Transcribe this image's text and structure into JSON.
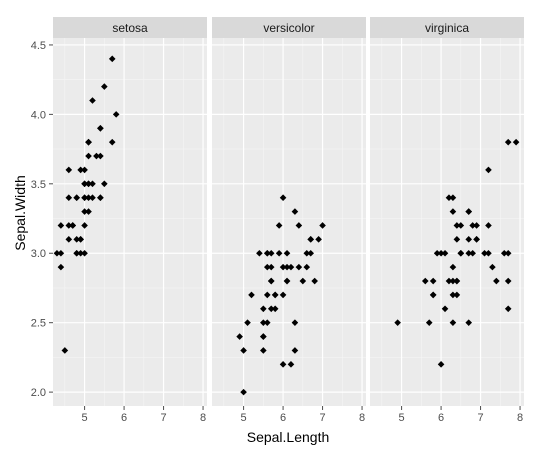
{
  "chart_data": {
    "type": "scatter",
    "facet_by": "Species",
    "xlabel": "Sepal.Length",
    "ylabel": "Sepal.Width",
    "xlim": [
      4.2,
      8.1
    ],
    "ylim": [
      1.9,
      4.55
    ],
    "x_ticks": [
      5,
      6,
      7,
      8
    ],
    "y_ticks": [
      2.0,
      2.5,
      3.0,
      3.5,
      4.0,
      4.5
    ],
    "y_tick_labels": [
      "2.0",
      "2.5",
      "3.0",
      "3.5",
      "4.0",
      "4.5"
    ],
    "grid": true,
    "point_color": "#000000",
    "panel_background": "#ebebeb",
    "strip_background": "#d9d9d9",
    "facets": [
      {
        "label": "setosa",
        "points": [
          [
            5.1,
            3.5
          ],
          [
            4.9,
            3.0
          ],
          [
            4.7,
            3.2
          ],
          [
            4.6,
            3.1
          ],
          [
            5.0,
            3.6
          ],
          [
            5.4,
            3.9
          ],
          [
            4.6,
            3.4
          ],
          [
            5.0,
            3.4
          ],
          [
            4.4,
            2.9
          ],
          [
            4.9,
            3.1
          ],
          [
            5.4,
            3.7
          ],
          [
            4.8,
            3.4
          ],
          [
            4.8,
            3.0
          ],
          [
            4.3,
            3.0
          ],
          [
            5.8,
            4.0
          ],
          [
            5.7,
            4.4
          ],
          [
            5.4,
            3.9
          ],
          [
            5.1,
            3.5
          ],
          [
            5.7,
            3.8
          ],
          [
            5.1,
            3.8
          ],
          [
            5.4,
            3.4
          ],
          [
            5.1,
            3.7
          ],
          [
            4.6,
            3.6
          ],
          [
            5.1,
            3.3
          ],
          [
            4.8,
            3.4
          ],
          [
            5.0,
            3.0
          ],
          [
            5.0,
            3.4
          ],
          [
            5.2,
            3.5
          ],
          [
            5.2,
            3.4
          ],
          [
            4.7,
            3.2
          ],
          [
            4.8,
            3.1
          ],
          [
            5.4,
            3.4
          ],
          [
            5.2,
            4.1
          ],
          [
            5.5,
            4.2
          ],
          [
            4.9,
            3.1
          ],
          [
            5.0,
            3.2
          ],
          [
            5.5,
            3.5
          ],
          [
            4.9,
            3.6
          ],
          [
            4.4,
            3.0
          ],
          [
            5.1,
            3.4
          ],
          [
            5.0,
            3.5
          ],
          [
            4.5,
            2.3
          ],
          [
            4.4,
            3.2
          ],
          [
            5.0,
            3.5
          ],
          [
            5.1,
            3.8
          ],
          [
            4.8,
            3.0
          ],
          [
            5.1,
            3.8
          ],
          [
            4.6,
            3.2
          ],
          [
            5.3,
            3.7
          ],
          [
            5.0,
            3.3
          ]
        ]
      },
      {
        "label": "versicolor",
        "points": [
          [
            7.0,
            3.2
          ],
          [
            6.4,
            3.2
          ],
          [
            6.9,
            3.1
          ],
          [
            5.5,
            2.3
          ],
          [
            6.5,
            2.8
          ],
          [
            5.7,
            2.8
          ],
          [
            6.3,
            3.3
          ],
          [
            4.9,
            2.4
          ],
          [
            6.6,
            2.9
          ],
          [
            5.2,
            2.7
          ],
          [
            5.0,
            2.0
          ],
          [
            5.9,
            3.0
          ],
          [
            6.0,
            2.2
          ],
          [
            6.1,
            2.9
          ],
          [
            5.6,
            2.9
          ],
          [
            6.7,
            3.1
          ],
          [
            5.6,
            3.0
          ],
          [
            5.8,
            2.7
          ],
          [
            6.2,
            2.2
          ],
          [
            5.6,
            2.5
          ],
          [
            5.9,
            3.2
          ],
          [
            6.1,
            2.8
          ],
          [
            6.3,
            2.5
          ],
          [
            6.1,
            2.8
          ],
          [
            6.4,
            2.9
          ],
          [
            6.6,
            3.0
          ],
          [
            6.8,
            2.8
          ],
          [
            6.7,
            3.0
          ],
          [
            6.0,
            2.9
          ],
          [
            5.7,
            2.6
          ],
          [
            5.5,
            2.4
          ],
          [
            5.5,
            2.4
          ],
          [
            5.8,
            2.7
          ],
          [
            6.0,
            2.7
          ],
          [
            5.4,
            3.0
          ],
          [
            6.0,
            3.4
          ],
          [
            6.7,
            3.1
          ],
          [
            6.3,
            2.3
          ],
          [
            5.6,
            3.0
          ],
          [
            5.5,
            2.5
          ],
          [
            5.5,
            2.6
          ],
          [
            6.1,
            3.0
          ],
          [
            5.8,
            2.6
          ],
          [
            5.0,
            2.3
          ],
          [
            5.6,
            2.7
          ],
          [
            5.7,
            3.0
          ],
          [
            5.7,
            2.9
          ],
          [
            6.2,
            2.9
          ],
          [
            5.1,
            2.5
          ],
          [
            5.7,
            2.8
          ]
        ]
      },
      {
        "label": "virginica",
        "points": [
          [
            6.3,
            3.3
          ],
          [
            5.8,
            2.7
          ],
          [
            7.1,
            3.0
          ],
          [
            6.3,
            2.9
          ],
          [
            6.5,
            3.0
          ],
          [
            7.6,
            3.0
          ],
          [
            4.9,
            2.5
          ],
          [
            7.3,
            2.9
          ],
          [
            6.7,
            2.5
          ],
          [
            7.2,
            3.6
          ],
          [
            6.5,
            3.2
          ],
          [
            6.4,
            2.7
          ],
          [
            6.8,
            3.0
          ],
          [
            5.7,
            2.5
          ],
          [
            5.8,
            2.8
          ],
          [
            6.4,
            3.2
          ],
          [
            6.5,
            3.0
          ],
          [
            7.7,
            3.8
          ],
          [
            7.7,
            2.6
          ],
          [
            6.0,
            2.2
          ],
          [
            6.9,
            3.2
          ],
          [
            5.6,
            2.8
          ],
          [
            7.7,
            2.8
          ],
          [
            6.3,
            2.7
          ],
          [
            6.7,
            3.3
          ],
          [
            7.2,
            3.2
          ],
          [
            6.2,
            2.8
          ],
          [
            6.1,
            3.0
          ],
          [
            6.4,
            2.8
          ],
          [
            7.2,
            3.0
          ],
          [
            7.4,
            2.8
          ],
          [
            7.9,
            3.8
          ],
          [
            6.4,
            2.8
          ],
          [
            6.3,
            2.8
          ],
          [
            6.1,
            2.6
          ],
          [
            7.7,
            3.0
          ],
          [
            6.3,
            3.4
          ],
          [
            6.4,
            3.1
          ],
          [
            6.0,
            3.0
          ],
          [
            6.9,
            3.1
          ],
          [
            6.7,
            3.1
          ],
          [
            6.9,
            3.1
          ],
          [
            5.8,
            2.7
          ],
          [
            6.8,
            3.2
          ],
          [
            6.7,
            3.3
          ],
          [
            6.7,
            3.0
          ],
          [
            6.3,
            2.5
          ],
          [
            6.5,
            3.0
          ],
          [
            6.2,
            3.4
          ],
          [
            5.9,
            3.0
          ]
        ]
      }
    ]
  }
}
